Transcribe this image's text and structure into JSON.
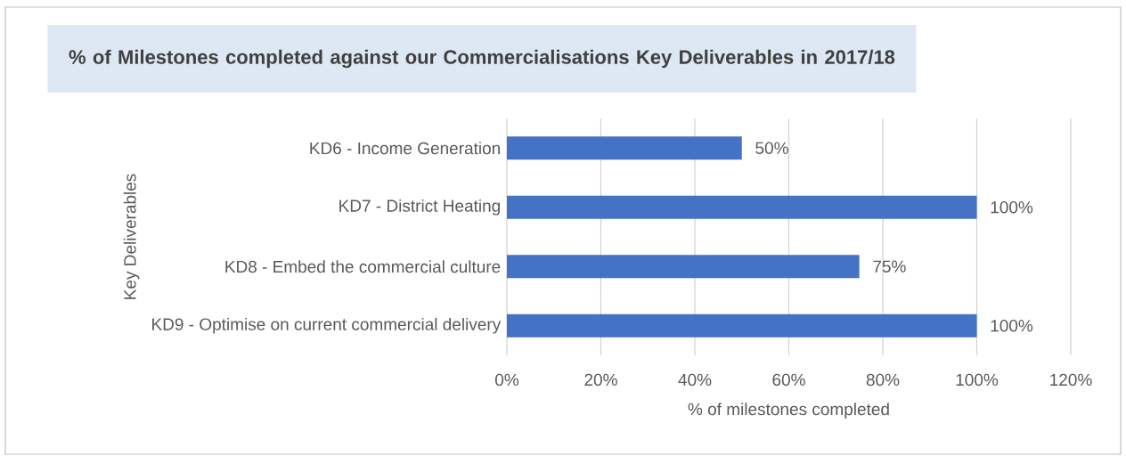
{
  "chart_data": {
    "type": "bar",
    "orientation": "horizontal",
    "title": "% of Milestones completed against our Commercialisations Key Deliverables in 2017/18",
    "xlabel": "% of milestones completed",
    "ylabel": "Key Deliverables",
    "categories": [
      "KD6 - Income Generation",
      "KD7 - District Heating",
      "KD8 - Embed the commercial culture",
      "KD9 - Optimise on  current commercial delivery"
    ],
    "values": [
      50,
      100,
      75,
      100
    ],
    "color": "#4472c4",
    "value_labels": [
      "50%",
      "100%",
      "75%",
      "100%"
    ],
    "xlim": [
      0,
      120
    ],
    "xticks": [
      {
        "value": 0,
        "label": "0%"
      },
      {
        "value": 20,
        "label": "20%"
      },
      {
        "value": 40,
        "label": "40%"
      },
      {
        "value": 60,
        "label": "60%"
      },
      {
        "value": 80,
        "label": "80%"
      },
      {
        "value": 100,
        "label": "100%"
      },
      {
        "value": 120,
        "label": "120%"
      }
    ],
    "grid": "x"
  }
}
